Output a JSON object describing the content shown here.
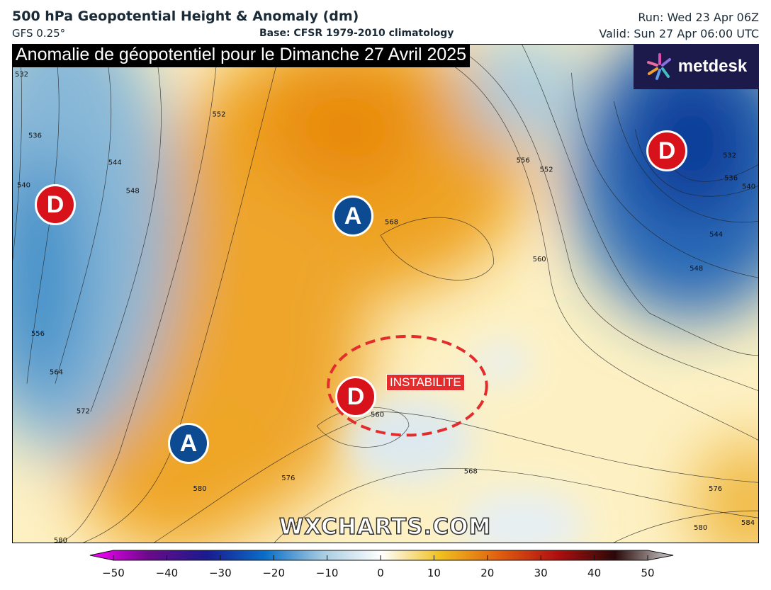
{
  "header": {
    "title": "500 hPa Geopotential Height & Anomaly (dm)",
    "model": "GFS 0.25°",
    "base": "Base: CFSR 1979-2010 climatology",
    "run": "Run: Wed 23 Apr 06Z",
    "valid": "Valid: Sun 27 Apr 06:00 UTC"
  },
  "map": {
    "banner": "Anomalie de géopotentiel pour le Dimanche 27 Avril 2025",
    "logo": "metdesk",
    "watermark": "WXCHARTS.COM",
    "instability_label": "INSTABILITE",
    "markers": [
      {
        "type": "D",
        "name": "low-atlantic"
      },
      {
        "type": "A",
        "name": "high-north-sea"
      },
      {
        "type": "D",
        "name": "low-russia"
      },
      {
        "type": "D",
        "name": "low-mediterranean"
      },
      {
        "type": "A",
        "name": "high-iberia"
      }
    ],
    "contour_labels": [
      "532",
      "536",
      "540",
      "544",
      "548",
      "552",
      "556",
      "564",
      "572",
      "580",
      "580",
      "576",
      "568",
      "560",
      "568",
      "560",
      "556",
      "552",
      "532",
      "536",
      "540",
      "544",
      "548",
      "576",
      "580",
      "584"
    ]
  },
  "colorbar": {
    "ticks": [
      "−50",
      "−40",
      "−30",
      "−20",
      "−10",
      "0",
      "10",
      "20",
      "30",
      "40",
      "50"
    ],
    "colors": [
      "#ff00ff",
      "#6a0a8a",
      "#1a1a8e",
      "#0a6ec8",
      "#a8cce0",
      "#ffffff",
      "#f5dc6a",
      "#f08a00",
      "#c81e10",
      "#3a0a0a",
      "#d0d0d0"
    ]
  }
}
